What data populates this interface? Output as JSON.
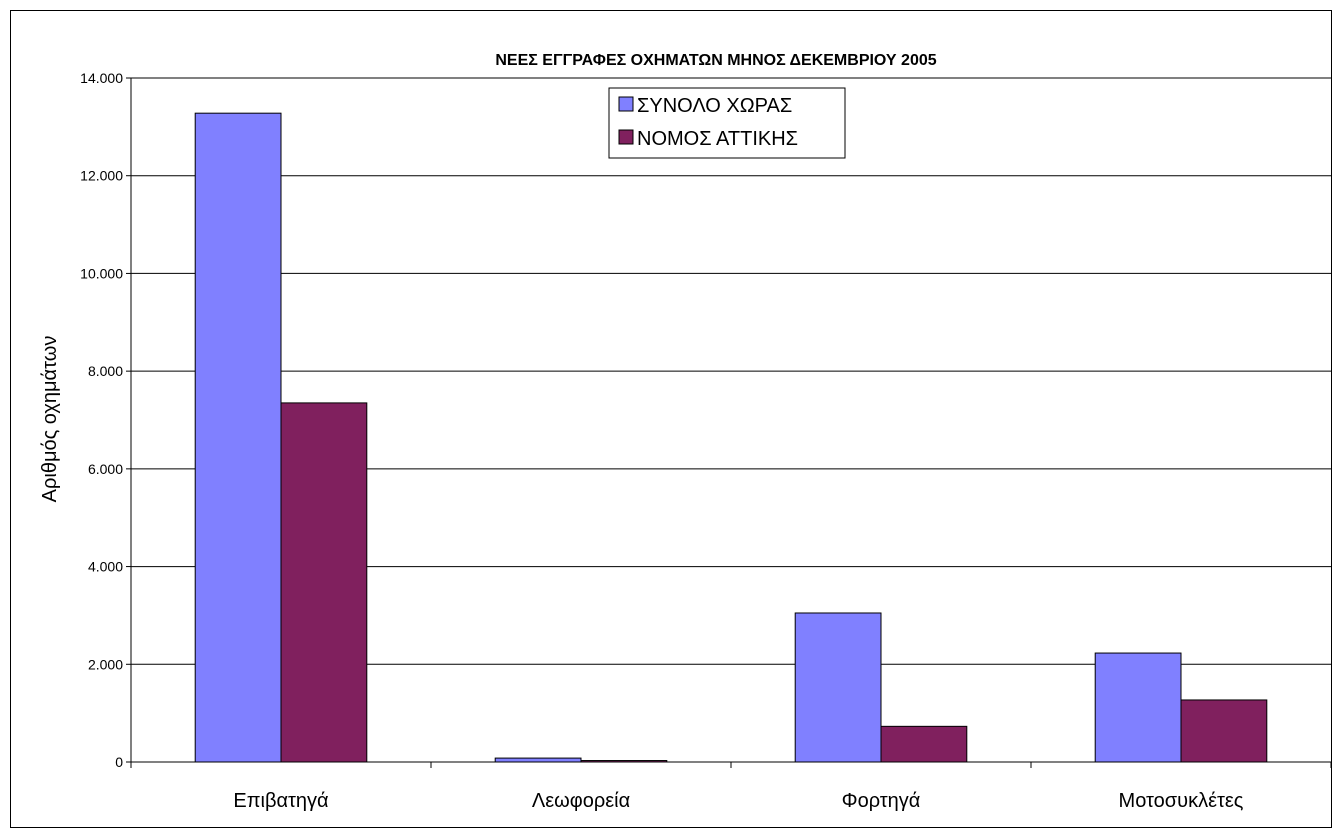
{
  "chart_data": {
    "type": "bar",
    "title": "ΝΕΕΣ ΕΓΓΡΑΦΕΣ ΟΧΗΜΑΤΩΝ ΜΗΝΟΣ ΔΕΚΕΜΒΡΙΟΥ 2005",
    "xlabel": "",
    "ylabel": "Αριθμός οχημάτων",
    "ylim": [
      0,
      14000
    ],
    "yticks": [
      0,
      2000,
      4000,
      6000,
      8000,
      10000,
      12000,
      14000
    ],
    "ytick_labels": [
      "0",
      "2.000",
      "4.000",
      "6.000",
      "8.000",
      "10.000",
      "12.000",
      "14.000"
    ],
    "grid": true,
    "legend_position": "top-center",
    "categories": [
      "Επιβατηγά",
      "Λεωφορεία",
      "Φορτηγά",
      "Μοτοσυκλέτες"
    ],
    "series": [
      {
        "name": "ΣΥΝΟΛΟ ΧΩΡΑΣ",
        "color": "#8080ff",
        "values": [
          13280,
          80,
          3050,
          2230
        ]
      },
      {
        "name": "ΝΟΜΟΣ ΑΤΤΙΚΗΣ",
        "color": "#80205e",
        "values": [
          7350,
          30,
          730,
          1270
        ]
      }
    ]
  }
}
